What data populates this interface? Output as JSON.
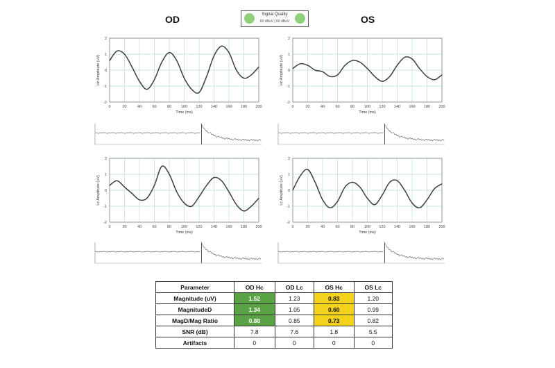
{
  "header": {
    "od_label": "OD",
    "os_label": "OS",
    "signal_quality": {
      "label": "Signal Quality",
      "sub": "60 dBuV | 60 dBuV",
      "color": "#8fd07a"
    }
  },
  "colors": {
    "trace": "#3a3f3d",
    "grid": "#b9dede",
    "green_cell": "#5aa345",
    "yellow_cell": "#f4d21c"
  },
  "chart_data": [
    {
      "id": "od-hc",
      "type": "line",
      "xlabel": "Time (ms)",
      "ylabel": "Hc Amplitude (uV)",
      "xlim": [
        0,
        200
      ],
      "ylim": [
        -2,
        2
      ],
      "x_ticks": [
        "0",
        "20",
        "40",
        "60",
        "80",
        "100",
        "120",
        "140",
        "160",
        "180",
        "200"
      ],
      "y_ticks": [
        "2",
        "1",
        "0",
        "-1",
        "-2"
      ],
      "x": [
        0,
        10,
        20,
        30,
        40,
        50,
        60,
        70,
        80,
        90,
        100,
        110,
        120,
        130,
        140,
        150,
        160,
        170,
        180,
        190,
        200
      ],
      "y": [
        0.6,
        1.2,
        1.0,
        0.2,
        -0.7,
        -1.2,
        -0.6,
        0.5,
        1.1,
        0.6,
        -0.5,
        -1.2,
        -1.4,
        -0.4,
        0.9,
        1.5,
        1.1,
        0.0,
        -0.5,
        -0.3,
        0.2
      ]
    },
    {
      "id": "os-hc",
      "type": "line",
      "xlabel": "Time (ms)",
      "ylabel": "Hc Amplitude (uV)",
      "xlim": [
        0,
        200
      ],
      "ylim": [
        -2,
        2
      ],
      "x_ticks": [
        "0",
        "20",
        "40",
        "60",
        "80",
        "100",
        "120",
        "140",
        "160",
        "180",
        "200"
      ],
      "y_ticks": [
        "2",
        "1",
        "0",
        "-1",
        "-2"
      ],
      "x": [
        0,
        10,
        20,
        30,
        40,
        50,
        60,
        70,
        80,
        90,
        100,
        110,
        120,
        130,
        140,
        150,
        160,
        170,
        180,
        190,
        200
      ],
      "y": [
        0.1,
        0.4,
        0.3,
        0.0,
        -0.1,
        -0.4,
        -0.3,
        0.3,
        0.6,
        0.5,
        0.1,
        -0.4,
        -0.7,
        -0.4,
        0.3,
        0.8,
        0.7,
        0.1,
        -0.4,
        -0.6,
        -0.3
      ]
    },
    {
      "id": "od-lc",
      "type": "line",
      "xlabel": "Time (ms)",
      "ylabel": "Lc Amplitude (uV)",
      "xlim": [
        0,
        200
      ],
      "ylim": [
        -2,
        2
      ],
      "x_ticks": [
        "0",
        "20",
        "40",
        "60",
        "80",
        "100",
        "120",
        "140",
        "160",
        "180",
        "200"
      ],
      "y_ticks": [
        "2",
        "1",
        "0",
        "-1",
        "-2"
      ],
      "x": [
        0,
        10,
        20,
        30,
        40,
        50,
        60,
        70,
        80,
        90,
        100,
        110,
        120,
        130,
        140,
        150,
        160,
        170,
        180,
        190,
        200
      ],
      "y": [
        0.3,
        0.6,
        0.2,
        -0.2,
        -0.6,
        -0.5,
        0.3,
        1.5,
        1.0,
        -0.1,
        -0.8,
        -1.0,
        -0.4,
        0.3,
        0.8,
        0.6,
        -0.1,
        -0.9,
        -1.3,
        -1.0,
        -0.5
      ]
    },
    {
      "id": "os-lc",
      "type": "line",
      "xlabel": "Time (ms)",
      "ylabel": "Lc Amplitude (uV)",
      "xlim": [
        0,
        200
      ],
      "ylim": [
        -2,
        2
      ],
      "x_ticks": [
        "0",
        "20",
        "40",
        "60",
        "80",
        "100",
        "120",
        "140",
        "160",
        "180",
        "200"
      ],
      "y_ticks": [
        "2",
        "1",
        "0",
        "-1",
        "-2"
      ],
      "x": [
        0,
        10,
        20,
        30,
        40,
        50,
        60,
        70,
        80,
        90,
        100,
        110,
        120,
        130,
        140,
        150,
        160,
        170,
        180,
        190,
        200
      ],
      "y": [
        0.0,
        0.9,
        1.3,
        0.5,
        -0.6,
        -1.1,
        -0.7,
        0.2,
        0.5,
        0.2,
        -0.5,
        -0.9,
        -0.3,
        0.5,
        0.6,
        0.0,
        -0.8,
        -1.1,
        -0.6,
        0.1,
        0.4
      ]
    }
  ],
  "table": {
    "headers": [
      "Parameter",
      "OD Hc",
      "OD Lc",
      "OS Hc",
      "OS Lc"
    ],
    "rows": [
      {
        "label": "Magnitude (uV)",
        "values": [
          "1.52",
          "1.23",
          "0.83",
          "1.20"
        ],
        "highlight": [
          "green",
          "",
          "yellow",
          ""
        ]
      },
      {
        "label": "MagnitudeD",
        "values": [
          "1.34",
          "1.05",
          "0.60",
          "0.99"
        ],
        "highlight": [
          "green",
          "",
          "yellow",
          ""
        ]
      },
      {
        "label": "MagD/Mag Ratio",
        "values": [
          "0.88",
          "0.85",
          "0.73",
          "0.82"
        ],
        "highlight": [
          "green",
          "",
          "yellow",
          ""
        ]
      },
      {
        "label": "SNR (dB)",
        "values": [
          "7.8",
          "7.6",
          "1.8",
          "5.5"
        ],
        "highlight": [
          "",
          "",
          "",
          ""
        ]
      },
      {
        "label": "Artifacts",
        "values": [
          "0",
          "0",
          "0",
          "0"
        ],
        "highlight": [
          "",
          "",
          "",
          ""
        ]
      }
    ]
  }
}
